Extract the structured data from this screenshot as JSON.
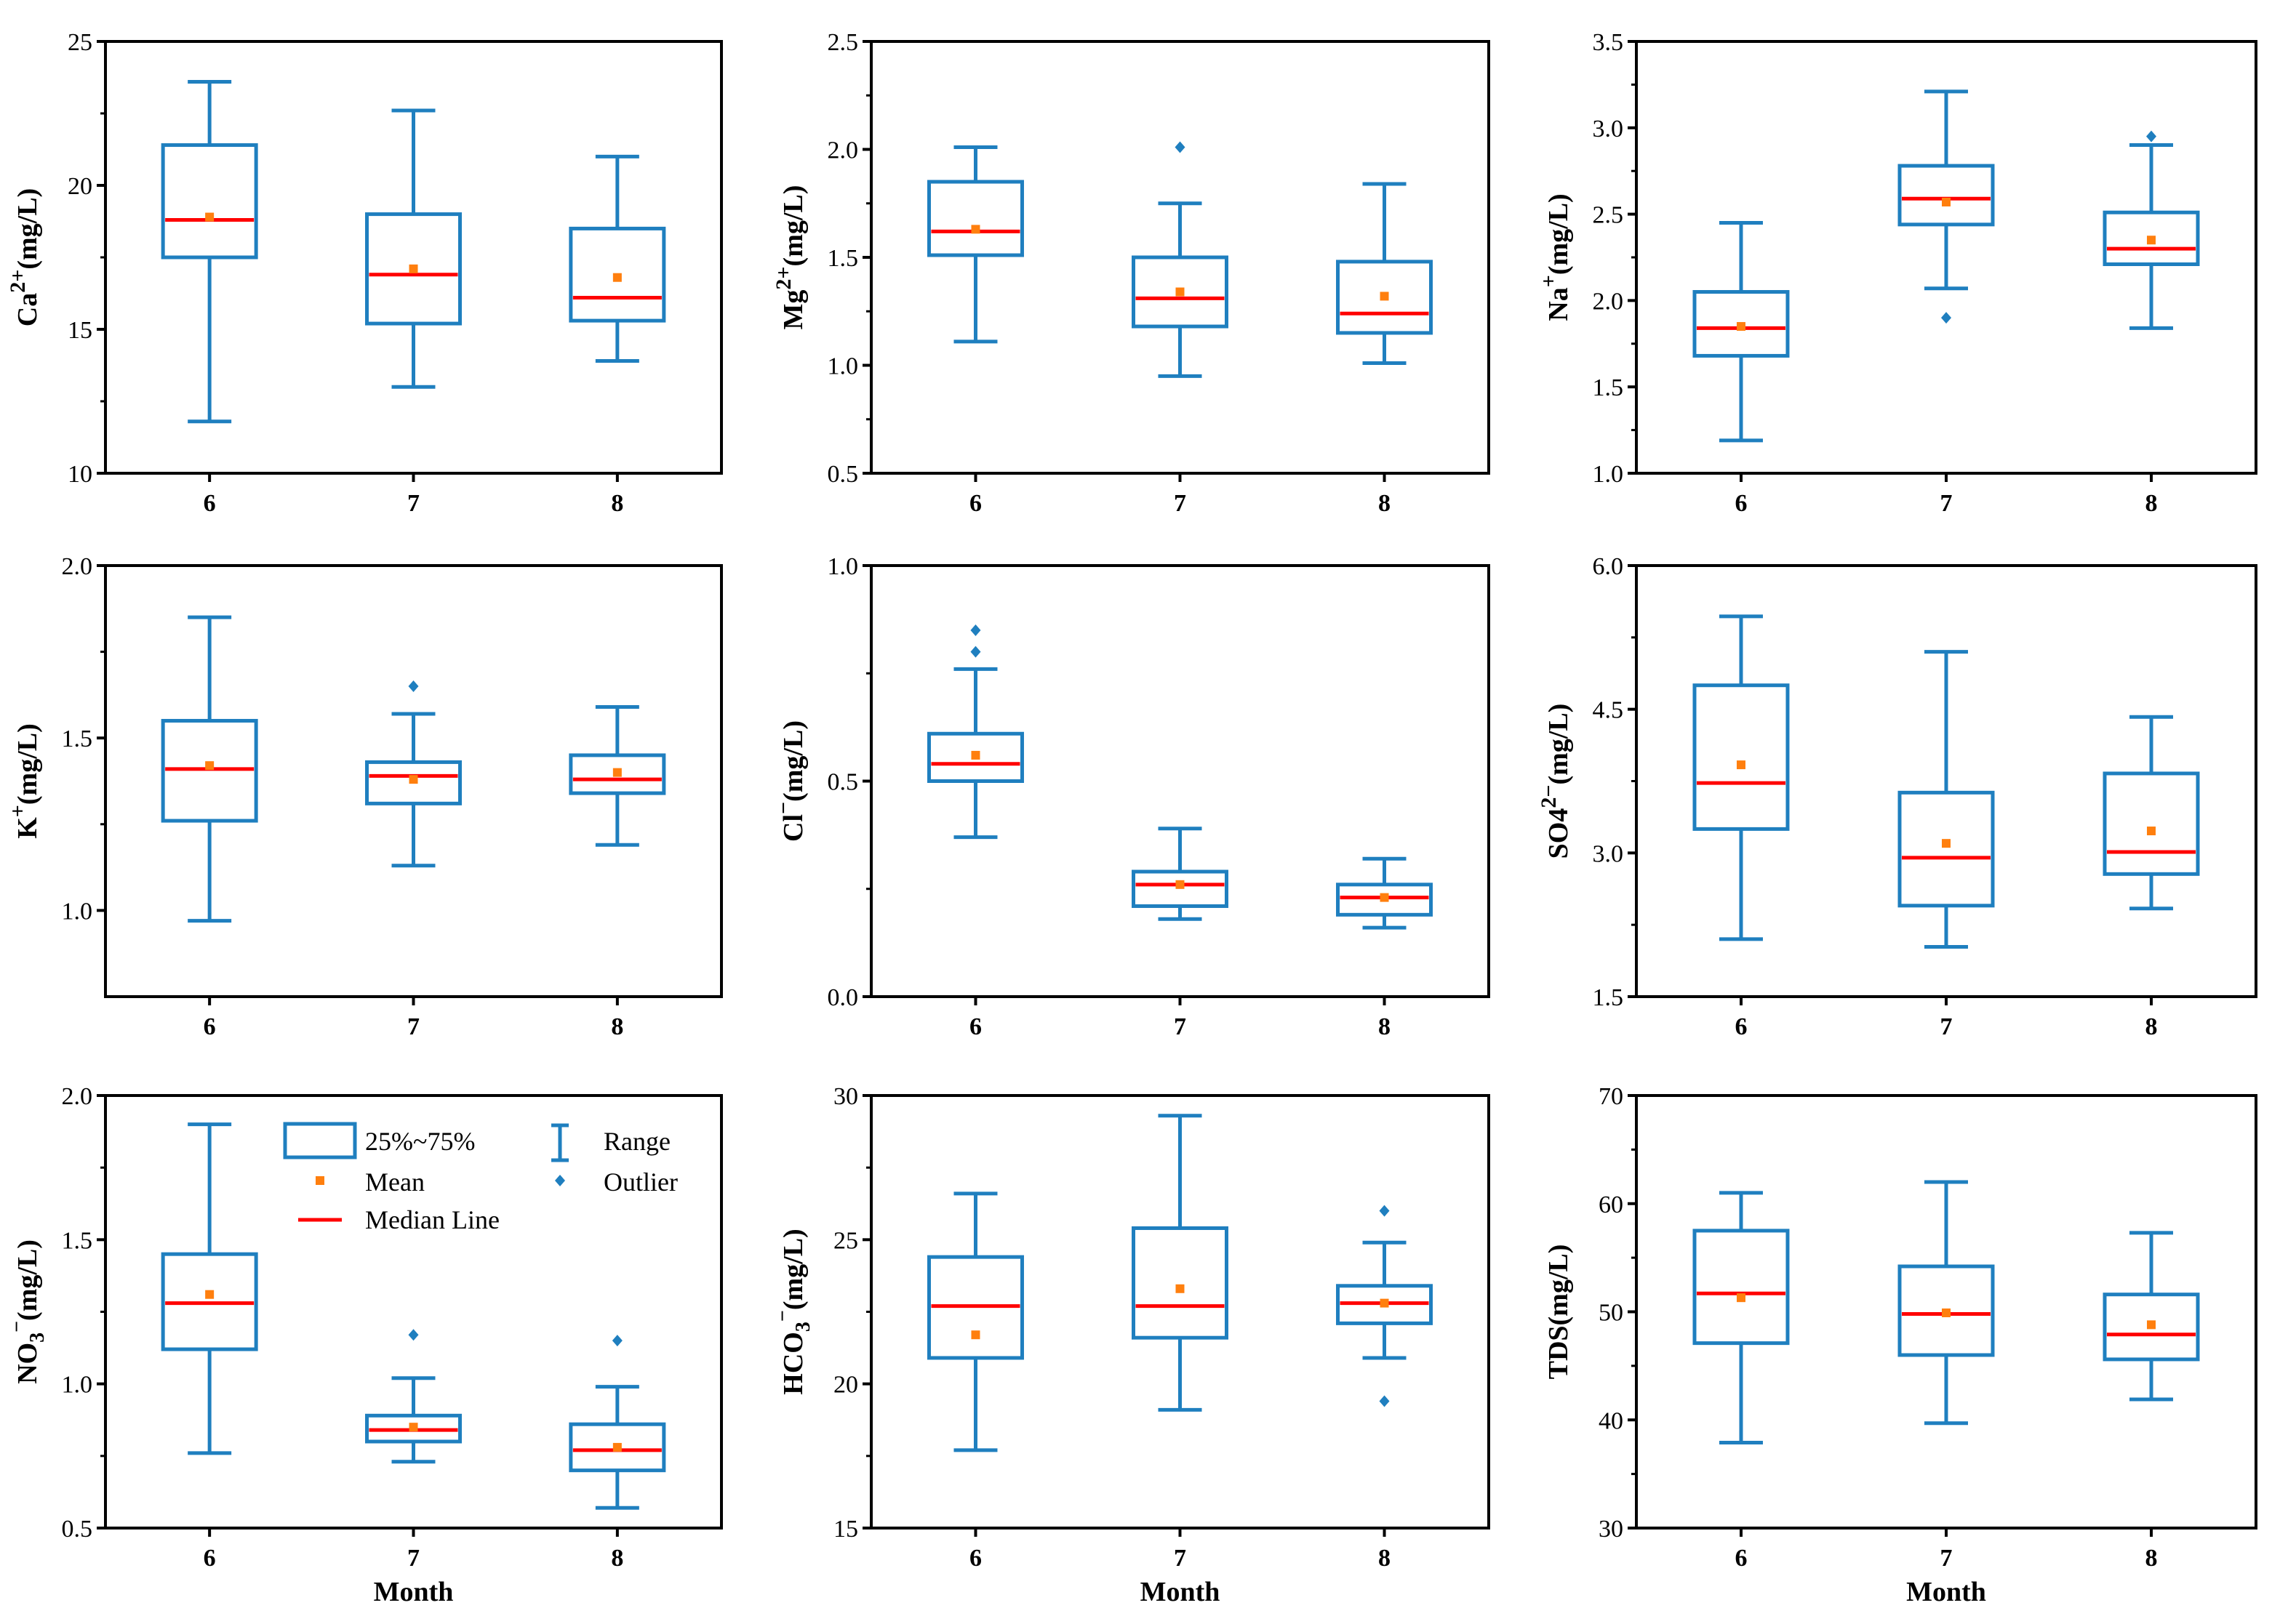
{
  "colors": {
    "box": "#1f7fbf",
    "median": "#ff0000",
    "mean": "#ff7f0e",
    "outlier": "#1f7fbf",
    "axis": "#000000"
  },
  "legend": {
    "box_label": "25%~75%",
    "range_label": "Range",
    "mean_label": "Mean",
    "outlier_label": "Outlier",
    "median_label": "Median Line"
  },
  "chart_data": [
    {
      "type": "box",
      "ylabel_main": "Ca",
      "ylabel_sup": "2+",
      "ylabel_tail": "(mg/L)",
      "xlabel": "",
      "ylim": [
        10,
        25
      ],
      "yticks": [
        "10",
        "15",
        "20",
        "25"
      ],
      "categories": [
        "6",
        "7",
        "8"
      ],
      "boxes": [
        {
          "min": 11.8,
          "q1": 17.5,
          "median": 18.8,
          "q3": 21.4,
          "max": 23.6,
          "mean": 18.9,
          "outliers": []
        },
        {
          "min": 13.0,
          "q1": 15.2,
          "median": 16.9,
          "q3": 19.0,
          "max": 22.6,
          "mean": 17.1,
          "outliers": []
        },
        {
          "min": 13.9,
          "q1": 15.3,
          "median": 16.1,
          "q3": 18.5,
          "max": 21.0,
          "mean": 16.8,
          "outliers": []
        }
      ]
    },
    {
      "type": "box",
      "ylabel_main": "Mg",
      "ylabel_sup": "2+",
      "ylabel_tail": "(mg/L)",
      "xlabel": "",
      "ylim": [
        0.5,
        2.5
      ],
      "yticks": [
        "0.5",
        "1.0",
        "1.5",
        "2.0",
        "2.5"
      ],
      "categories": [
        "6",
        "7",
        "8"
      ],
      "boxes": [
        {
          "min": 1.11,
          "q1": 1.51,
          "median": 1.62,
          "q3": 1.85,
          "max": 2.01,
          "mean": 1.63,
          "outliers": []
        },
        {
          "min": 0.95,
          "q1": 1.18,
          "median": 1.31,
          "q3": 1.5,
          "max": 1.75,
          "mean": 1.34,
          "outliers": [
            2.01
          ]
        },
        {
          "min": 1.01,
          "q1": 1.15,
          "median": 1.24,
          "q3": 1.48,
          "max": 1.84,
          "mean": 1.32,
          "outliers": []
        }
      ]
    },
    {
      "type": "box",
      "ylabel_main": "Na",
      "ylabel_sup": "+",
      "ylabel_tail": "(mg/L)",
      "xlabel": "",
      "ylim": [
        1.0,
        3.5
      ],
      "yticks": [
        "1.0",
        "1.5",
        "2.0",
        "2.5",
        "3.0",
        "3.5"
      ],
      "categories": [
        "6",
        "7",
        "8"
      ],
      "boxes": [
        {
          "min": 1.19,
          "q1": 1.68,
          "median": 1.84,
          "q3": 2.05,
          "max": 2.45,
          "mean": 1.85,
          "outliers": []
        },
        {
          "min": 2.07,
          "q1": 2.44,
          "median": 2.59,
          "q3": 2.78,
          "max": 3.21,
          "mean": 2.57,
          "outliers": [
            1.9
          ]
        },
        {
          "min": 1.84,
          "q1": 2.21,
          "median": 2.3,
          "q3": 2.51,
          "max": 2.9,
          "mean": 2.35,
          "outliers": [
            2.95
          ]
        }
      ]
    },
    {
      "type": "box",
      "ylabel_main": "K",
      "ylabel_sup": "+",
      "ylabel_tail": "(mg/L)",
      "xlabel": "",
      "ylim": [
        0.75,
        2.0
      ],
      "yticks": [
        "1.0",
        "1.5",
        "2.0"
      ],
      "categories": [
        "6",
        "7",
        "8"
      ],
      "boxes": [
        {
          "min": 0.97,
          "q1": 1.26,
          "median": 1.41,
          "q3": 1.55,
          "max": 1.85,
          "mean": 1.42,
          "outliers": []
        },
        {
          "min": 1.13,
          "q1": 1.31,
          "median": 1.39,
          "q3": 1.43,
          "max": 1.57,
          "mean": 1.38,
          "outliers": [
            1.65
          ]
        },
        {
          "min": 1.19,
          "q1": 1.34,
          "median": 1.38,
          "q3": 1.45,
          "max": 1.59,
          "mean": 1.4,
          "outliers": []
        }
      ]
    },
    {
      "type": "box",
      "ylabel_main": "Cl",
      "ylabel_sup": "−",
      "ylabel_tail": "(mg/L)",
      "xlabel": "",
      "ylim": [
        0.0,
        1.0
      ],
      "yticks": [
        "0.0",
        "0.5",
        "1.0"
      ],
      "categories": [
        "6",
        "7",
        "8"
      ],
      "boxes": [
        {
          "min": 0.37,
          "q1": 0.5,
          "median": 0.54,
          "q3": 0.61,
          "max": 0.76,
          "mean": 0.56,
          "outliers": [
            0.8,
            0.85
          ]
        },
        {
          "min": 0.18,
          "q1": 0.21,
          "median": 0.26,
          "q3": 0.29,
          "max": 0.39,
          "mean": 0.26,
          "outliers": []
        },
        {
          "min": 0.16,
          "q1": 0.19,
          "median": 0.23,
          "q3": 0.26,
          "max": 0.32,
          "mean": 0.23,
          "outliers": []
        }
      ]
    },
    {
      "type": "box",
      "ylabel_main": "SO4",
      "ylabel_sup": "2−",
      "ylabel_tail": "(mg/L)",
      "xlabel": "",
      "ylim": [
        1.5,
        6.0
      ],
      "yticks": [
        "1.5",
        "3.0",
        "4.5",
        "6.0"
      ],
      "categories": [
        "6",
        "7",
        "8"
      ],
      "boxes": [
        {
          "min": 2.1,
          "q1": 3.25,
          "median": 3.73,
          "q3": 4.75,
          "max": 5.47,
          "mean": 3.92,
          "outliers": []
        },
        {
          "min": 2.02,
          "q1": 2.45,
          "median": 2.95,
          "q3": 3.63,
          "max": 5.1,
          "mean": 3.1,
          "outliers": []
        },
        {
          "min": 2.42,
          "q1": 2.78,
          "median": 3.01,
          "q3": 3.83,
          "max": 4.42,
          "mean": 3.23,
          "outliers": []
        }
      ]
    },
    {
      "type": "box",
      "ylabel_main": "NO",
      "ylabel_sub": "3",
      "ylabel_sup": "−",
      "ylabel_tail": "(mg/L)",
      "xlabel": "Month",
      "ylim": [
        0.5,
        2.0
      ],
      "yticks": [
        "0.5",
        "1.0",
        "1.5",
        "2.0"
      ],
      "categories": [
        "6",
        "7",
        "8"
      ],
      "boxes": [
        {
          "min": 0.76,
          "q1": 1.12,
          "median": 1.28,
          "q3": 1.45,
          "max": 1.9,
          "mean": 1.31,
          "outliers": []
        },
        {
          "min": 0.73,
          "q1": 0.8,
          "median": 0.84,
          "q3": 0.89,
          "max": 1.02,
          "mean": 0.85,
          "outliers": [
            1.17
          ]
        },
        {
          "min": 0.57,
          "q1": 0.7,
          "median": 0.77,
          "q3": 0.86,
          "max": 0.99,
          "mean": 0.78,
          "outliers": [
            1.15
          ]
        }
      ]
    },
    {
      "type": "box",
      "ylabel_main": "HCO",
      "ylabel_sub": "3",
      "ylabel_sup": "−",
      "ylabel_tail": "(mg/L)",
      "xlabel": "Month",
      "ylim": [
        15,
        30
      ],
      "yticks": [
        "15",
        "20",
        "25",
        "30"
      ],
      "categories": [
        "6",
        "7",
        "8"
      ],
      "boxes": [
        {
          "min": 17.7,
          "q1": 20.9,
          "median": 22.7,
          "q3": 24.4,
          "max": 26.6,
          "mean": 21.7,
          "outliers": []
        },
        {
          "min": 19.1,
          "q1": 21.6,
          "median": 22.7,
          "q3": 25.4,
          "max": 29.3,
          "mean": 23.3,
          "outliers": []
        },
        {
          "min": 20.9,
          "q1": 22.1,
          "median": 22.8,
          "q3": 23.4,
          "max": 24.9,
          "mean": 22.8,
          "outliers": [
            19.4,
            26.0
          ]
        }
      ]
    },
    {
      "type": "box",
      "ylabel_main": "TDS",
      "ylabel_tail": "(mg/L)",
      "xlabel": "Month",
      "ylim": [
        30,
        70
      ],
      "yticks": [
        "30",
        "40",
        "50",
        "60",
        "70"
      ],
      "categories": [
        "6",
        "7",
        "8"
      ],
      "boxes": [
        {
          "min": 37.9,
          "q1": 47.1,
          "median": 51.7,
          "q3": 57.5,
          "max": 61.0,
          "mean": 51.3,
          "outliers": []
        },
        {
          "min": 39.7,
          "q1": 46.0,
          "median": 49.8,
          "q3": 54.2,
          "max": 62.0,
          "mean": 49.9,
          "outliers": []
        },
        {
          "min": 41.9,
          "q1": 45.6,
          "median": 47.9,
          "q3": 51.6,
          "max": 57.3,
          "mean": 48.8,
          "outliers": []
        }
      ]
    }
  ]
}
